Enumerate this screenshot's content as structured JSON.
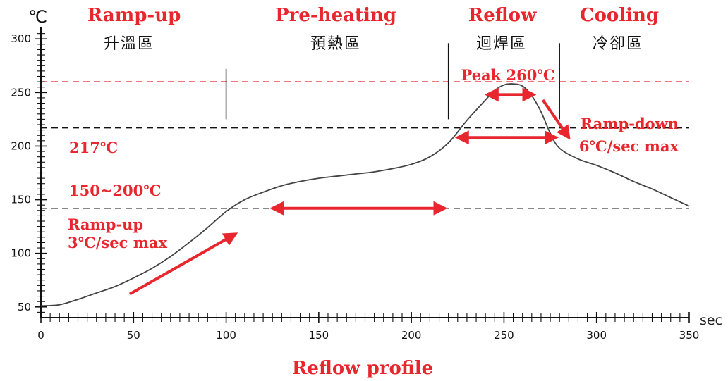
{
  "chart_data": {
    "type": "line",
    "title": "Reflow profile",
    "xlabel": "sec",
    "ylabel": "℃",
    "xlim": [
      0,
      350
    ],
    "ylim": [
      40,
      310
    ],
    "x_ticks": [
      0,
      50,
      100,
      150,
      200,
      250,
      300,
      350
    ],
    "y_ticks": [
      50,
      100,
      150,
      200,
      250,
      300
    ],
    "x_minor_step": 5,
    "y_minor_step": 5,
    "series": [
      {
        "x": [
          0,
          10,
          20,
          30,
          40,
          50,
          60,
          70,
          80,
          90,
          100,
          110,
          120,
          130,
          140,
          150,
          160,
          170,
          180,
          190,
          200,
          210,
          220,
          230,
          240,
          245,
          250,
          255,
          260,
          265,
          270,
          275,
          280,
          290,
          300,
          310,
          320,
          330,
          340,
          350
        ],
        "y": [
          51,
          52,
          57,
          63,
          69,
          77,
          86,
          97,
          110,
          124,
          139,
          150,
          157,
          163,
          167,
          170,
          172,
          174,
          176,
          179,
          183,
          190,
          203,
          224,
          243,
          252,
          257,
          258,
          256,
          247,
          232,
          212,
          198,
          188,
          182,
          175,
          167,
          160,
          152,
          144
        ],
        "color": "#444444"
      }
    ],
    "zones": [
      {
        "en": "Ramp-up",
        "zh": "升溫區",
        "x_start": 0,
        "x_end": 100
      },
      {
        "en": "Pre-heating",
        "zh": "預熱區",
        "x_start": 100,
        "x_end": 220
      },
      {
        "en": "Reflow",
        "zh": "迴焊區",
        "x_start": 220,
        "x_end": 280
      },
      {
        "en": "Cooling",
        "zh": "冷卻區",
        "x_start": 280,
        "x_end": 350
      }
    ],
    "zone_dividers": [
      {
        "x": 100,
        "y_from": 225,
        "y_to": 272
      },
      {
        "x": 220,
        "y_from": 225,
        "y_to": 296
      },
      {
        "x": 280,
        "y_from": 225,
        "y_to": 296
      }
    ],
    "reference_lines": [
      {
        "y": 260,
        "color": "#e8262e",
        "style": "dashed"
      },
      {
        "y": 217,
        "color": "#111111",
        "style": "dashed"
      },
      {
        "y": 142,
        "color": "#111111",
        "style": "dashed"
      }
    ],
    "annotations": {
      "peak": "Peak 260℃",
      "liquidus": "217℃",
      "soak": "150~200℃",
      "ramp_up_1": "Ramp-up",
      "ramp_up_2": "3℃/sec max",
      "ramp_down_1": "Ramp-down",
      "ramp_down_2": "6℃/sec max"
    },
    "arrows": [
      {
        "kind": "single",
        "from": [
          48,
          62
        ],
        "to": [
          105,
          118
        ]
      },
      {
        "kind": "double",
        "from": [
          125,
          142
        ],
        "to": [
          218,
          142
        ]
      },
      {
        "kind": "double",
        "from": [
          225,
          208
        ],
        "to": [
          278,
          208
        ]
      },
      {
        "kind": "double",
        "from": [
          241,
          248
        ],
        "to": [
          266,
          248
        ]
      },
      {
        "kind": "single",
        "from": [
          271,
          243
        ],
        "to": [
          285,
          208
        ]
      }
    ],
    "colors": {
      "accent": "#e8262e",
      "axis": "#111111",
      "curve": "#444444"
    }
  }
}
